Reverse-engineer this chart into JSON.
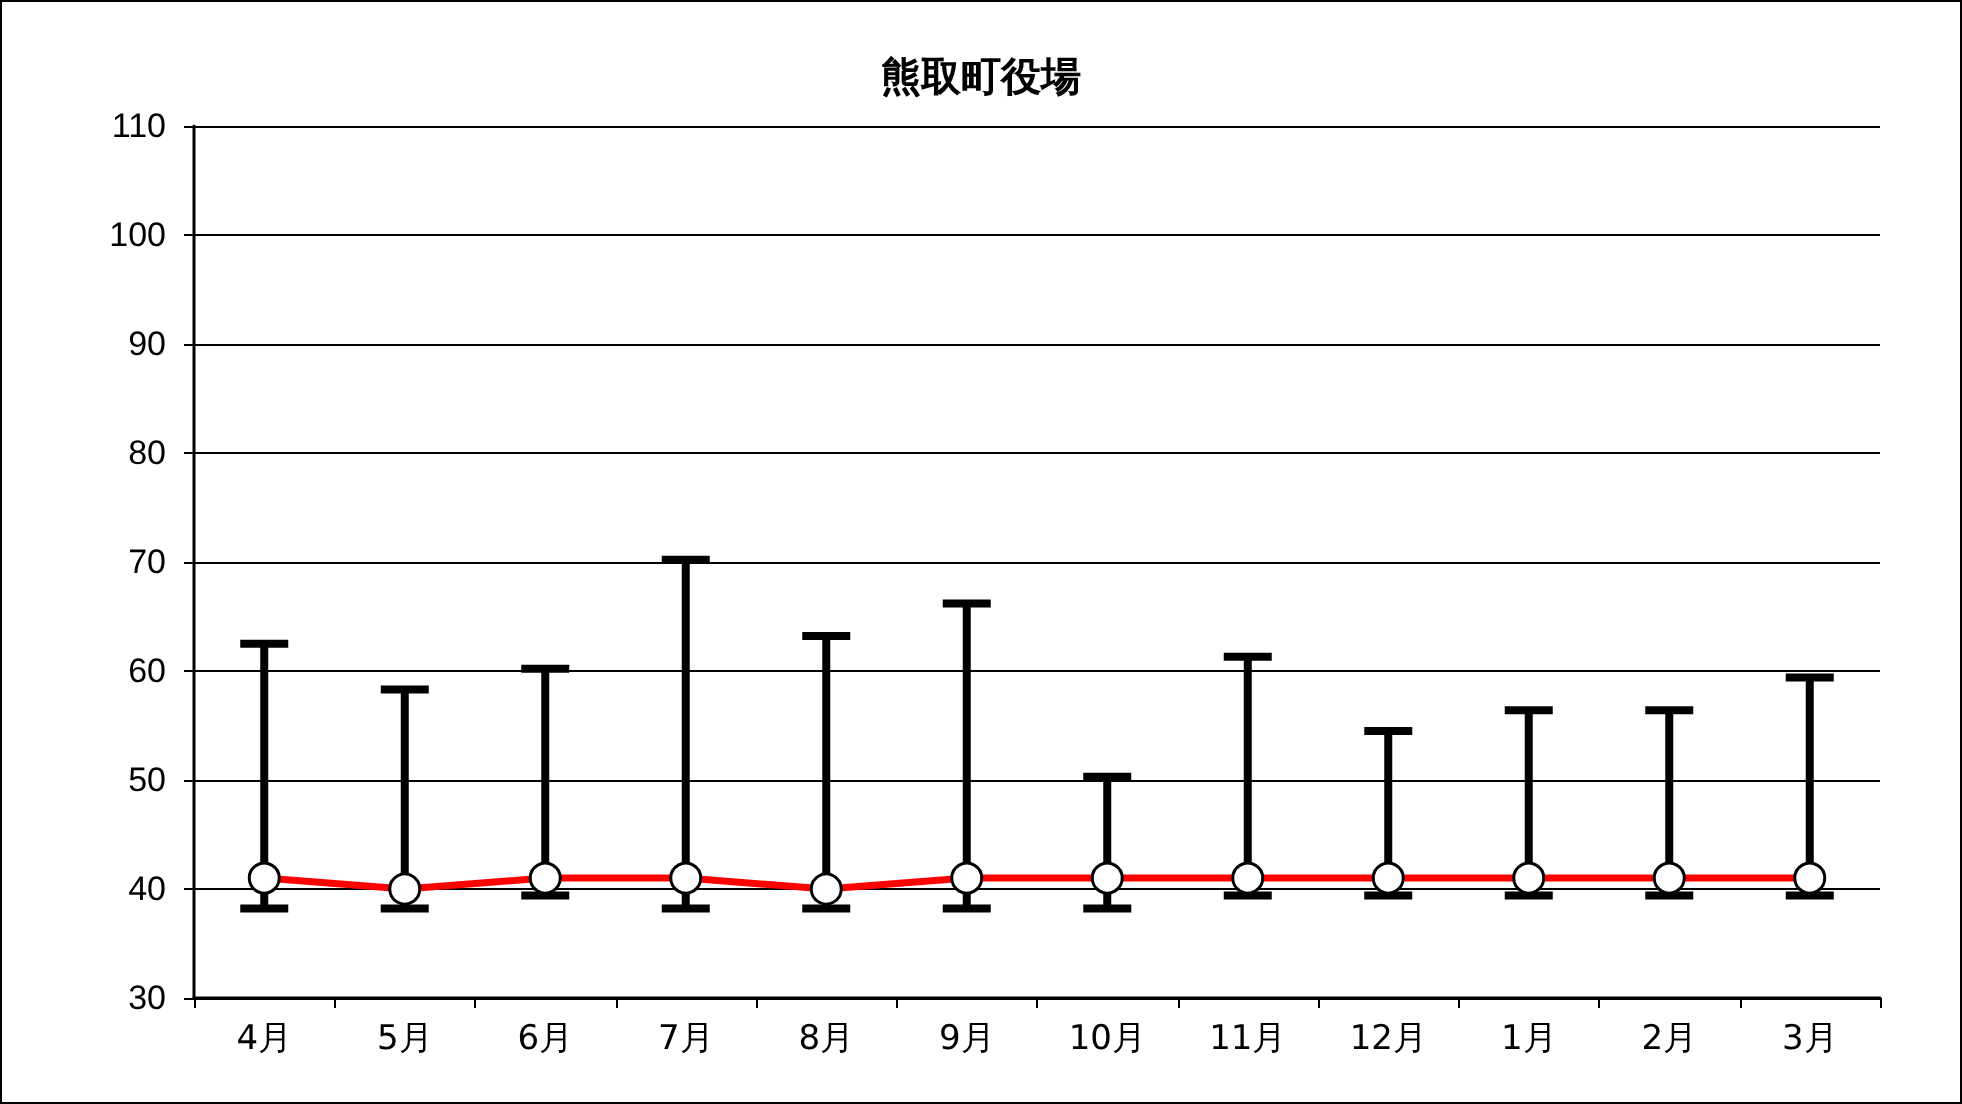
{
  "chart_data": {
    "type": "line",
    "title": "熊取町役場",
    "categories": [
      "4月",
      "5月",
      "6月",
      "7月",
      "8月",
      "9月",
      "10月",
      "11月",
      "12月",
      "1月",
      "2月",
      "3月"
    ],
    "series": [
      {
        "color": "#ff0000",
        "values": [
          41,
          40,
          41,
          41,
          40,
          41,
          41,
          41,
          41,
          41,
          41,
          41
        ],
        "errors": [
          [
            38.2,
            62.5
          ],
          [
            38.2,
            58.3
          ],
          [
            39.4,
            60.2
          ],
          [
            38.2,
            70.2
          ],
          [
            38.2,
            63.2
          ],
          [
            38.2,
            66.2
          ],
          [
            38.2,
            50.3
          ],
          [
            39.4,
            61.3
          ],
          [
            39.4,
            54.5
          ],
          [
            39.4,
            56.4
          ],
          [
            39.4,
            56.4
          ],
          [
            39.4,
            59.4
          ]
        ]
      }
    ],
    "ylim": [
      30,
      110
    ],
    "yticks": [
      30,
      40,
      50,
      60,
      70,
      80,
      90,
      100,
      110
    ],
    "grid": "y",
    "marker": "circle",
    "line_style": "solid"
  }
}
